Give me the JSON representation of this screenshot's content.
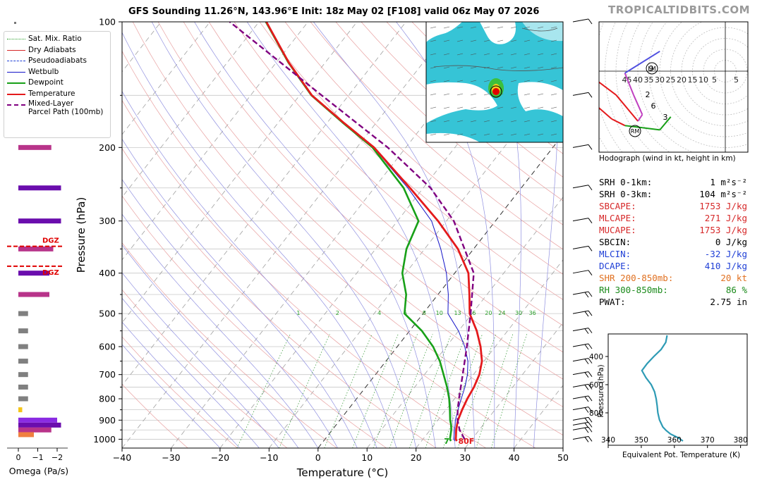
{
  "title": "GFS Sounding 11.26°N, 143.96°E Init: 18z May 02 [F108] valid 06z May 07 2026",
  "brand": "TROPICALTIDBITS.COM",
  "legend": [
    {
      "label": "Sat. Mix. Ratio",
      "color": "#2ca02c",
      "style": "dotted"
    },
    {
      "label": "Dry Adiabats",
      "color": "#d62728",
      "style": "thin"
    },
    {
      "label": "Pseudoadiabats",
      "color": "#1f3fd6",
      "style": "dashed-thin"
    },
    {
      "label": "Wetbulb",
      "color": "#1414c8",
      "style": "solid"
    },
    {
      "label": "Dewpoint",
      "color": "#18a018",
      "style": "thick"
    },
    {
      "label": "Temperature",
      "color": "#e41a1c",
      "style": "thick"
    },
    {
      "label": "Mixed-Layer\nParcel Path (100mb)",
      "color": "#800080",
      "style": "dashed-thick"
    }
  ],
  "chart_data": [
    {
      "type": "line",
      "name": "skew-t",
      "xlabel": "Temperature (°C)",
      "ylabel": "Pressure (hPa)",
      "xlim": [
        -40,
        50
      ],
      "ylim": [
        1050,
        100
      ],
      "y_scale": "log",
      "x_ticks": [
        -40,
        -30,
        -20,
        -10,
        0,
        10,
        20,
        30,
        40,
        50
      ],
      "y_ticks": [
        100,
        200,
        300,
        400,
        500,
        600,
        700,
        800,
        900,
        1000
      ],
      "mixing_ratio_labels": [
        "1",
        "2",
        "4",
        "6",
        "8",
        "10",
        "13",
        "16",
        "20",
        "24",
        "30",
        "36"
      ],
      "mixing_ratio_values": [
        1,
        2,
        4,
        6,
        8,
        10,
        13,
        16,
        20,
        24,
        30,
        36
      ],
      "temperature": {
        "p": [
          1010,
          1000,
          950,
          925,
          900,
          850,
          800,
          750,
          700,
          650,
          600,
          550,
          500,
          450,
          400,
          350,
          300,
          250,
          200,
          175,
          150,
          125,
          100
        ],
        "t": [
          27.2,
          26.7,
          25.3,
          24.7,
          24.1,
          23.3,
          22.6,
          22.1,
          21.2,
          19.6,
          17.0,
          13.7,
          9.5,
          6.4,
          2.8,
          -3.2,
          -11.7,
          -22.7,
          -36.5,
          -46.4,
          -57.5,
          -67.5,
          -78.5
        ]
      },
      "dewpoint": {
        "p": [
          1010,
          1000,
          950,
          925,
          900,
          850,
          800,
          750,
          700,
          650,
          600,
          550,
          500,
          450,
          400,
          350,
          300,
          250,
          200,
          175,
          150,
          125,
          100
        ],
        "t": [
          26.0,
          25.5,
          24.3,
          23.5,
          22.5,
          20.8,
          18.9,
          16.6,
          13.9,
          11.0,
          7.3,
          2.5,
          -3.8,
          -6.5,
          -10.7,
          -13.7,
          -15.7,
          -24.0,
          -36.8,
          -46.6,
          -57.6,
          -67.6,
          -78.6
        ]
      },
      "parcel": {
        "p": [
          1000,
          950,
          900,
          850,
          800,
          700,
          600,
          500,
          400,
          300,
          250,
          200,
          150,
          100
        ],
        "t": [
          28.5,
          26.0,
          24.0,
          22.4,
          20.9,
          17.8,
          14.2,
          9.7,
          3.9,
          -8.5,
          -18.5,
          -33.7,
          -55.5,
          -86.0
        ]
      },
      "annotations": [
        "7",
        "80F"
      ]
    },
    {
      "type": "bar",
      "name": "omega",
      "xlabel": "Omega (Pa/s)",
      "x_ticks": [
        "0",
        "−1",
        "−2"
      ],
      "xlim": [
        0.3,
        -2.3
      ],
      "levels": [
        150,
        200,
        250,
        300,
        350,
        400,
        450,
        500,
        550,
        600,
        650,
        700,
        750,
        800,
        850,
        900,
        925,
        950,
        975
      ],
      "values": [
        -1.5,
        -1.7,
        -2.2,
        -2.2,
        -1.8,
        -1.6,
        -1.6,
        -0.5,
        -0.5,
        -0.5,
        -0.5,
        -0.5,
        -0.5,
        -0.5,
        -0.2,
        -2.0,
        -2.2,
        -1.7,
        -0.8
      ],
      "colors": [
        "#b8348a",
        "#b8348a",
        "#6a0dad",
        "#6a0dad",
        "#b8348a",
        "#6a0dad",
        "#b8348a",
        "#808080",
        "#808080",
        "#808080",
        "#808080",
        "#808080",
        "#808080",
        "#808080",
        "#f5c518",
        "#8a2be2",
        "#6a0dad",
        "#b8348a",
        "#f08040"
      ],
      "dgz_levels": [
        345,
        385
      ],
      "dgz_label": "DGZ"
    },
    {
      "type": "line",
      "name": "hodograph",
      "caption": "Hodograph (wind in kt, height in km)",
      "ring_labels": [
        "45",
        "40",
        "35",
        "30",
        "25",
        "20",
        "15",
        "10",
        "5",
        "5"
      ],
      "height_labels": [
        "9",
        "2",
        "6",
        "3"
      ],
      "markers": [
        "LM",
        "RM"
      ],
      "u": [
        -3,
        -8,
        -16,
        -24,
        -30,
        -38,
        -46,
        -44,
        -36,
        -28,
        -18,
        -16,
        -20,
        -24,
        -8
      ],
      "v": [
        -8,
        -14,
        -13,
        -12,
        -9,
        -2,
        -2,
        2,
        8,
        2,
        -10,
        -7,
        2,
        12,
        22
      ]
    },
    {
      "type": "line",
      "name": "theta-e",
      "xlabel": "Equivalent Pot. Temperature (K)",
      "ylabel": "Pressure (hPa)",
      "xlim": [
        340,
        382
      ],
      "ylim": [
        1030,
        240
      ],
      "x_ticks": [
        340,
        350,
        360,
        370,
        380
      ],
      "y_ticks": [
        400,
        600,
        800
      ],
      "p": [
        250,
        300,
        350,
        400,
        450,
        500,
        550,
        600,
        650,
        700,
        750,
        800,
        850,
        900,
        925,
        950,
        975,
        1000
      ],
      "theta_e": [
        357.8,
        357.4,
        356.0,
        353.8,
        351.8,
        350.2,
        351.4,
        353.0,
        354.0,
        354.5,
        354.8,
        355.0,
        355.5,
        356.5,
        357.5,
        358.8,
        361.0,
        362.6
      ]
    }
  ],
  "stats": [
    {
      "label": "SRH 0-1km:",
      "value": "1 m²s⁻²",
      "color": "#000000"
    },
    {
      "label": "SRH 0-3km:",
      "value": "104 m²s⁻²",
      "color": "#000000"
    },
    {
      "label": "SBCAPE:",
      "value": "1753 J/kg",
      "color": "#d62728"
    },
    {
      "label": "MLCAPE:",
      "value": "271 J/kg",
      "color": "#d62728"
    },
    {
      "label": "MUCAPE:",
      "value": "1753 J/kg",
      "color": "#d62728"
    },
    {
      "label": "SBCIN:",
      "value": "0 J/kg",
      "color": "#000000"
    },
    {
      "label": "MLCIN:",
      "value": "-32 J/kg",
      "color": "#1f3fd6"
    },
    {
      "label": "DCAPE:",
      "value": "410 J/kg",
      "color": "#1f3fd6"
    },
    {
      "label": "SHR 200-850mb:",
      "value": "20 kt",
      "color": "#e07020"
    },
    {
      "label": "RH 300-850mb:",
      "value": "86 %",
      "color": "#1a8a1a"
    },
    {
      "label": "PWAT:",
      "value": "2.75 in",
      "color": "#000000"
    }
  ],
  "colors": {
    "temperature": "#e41a1c",
    "dewpoint": "#18a018",
    "parcel": "#800080",
    "wetbulb": "#1414c8",
    "theta_e": "#2e9bb5",
    "map_sea": "#36c4d6"
  }
}
